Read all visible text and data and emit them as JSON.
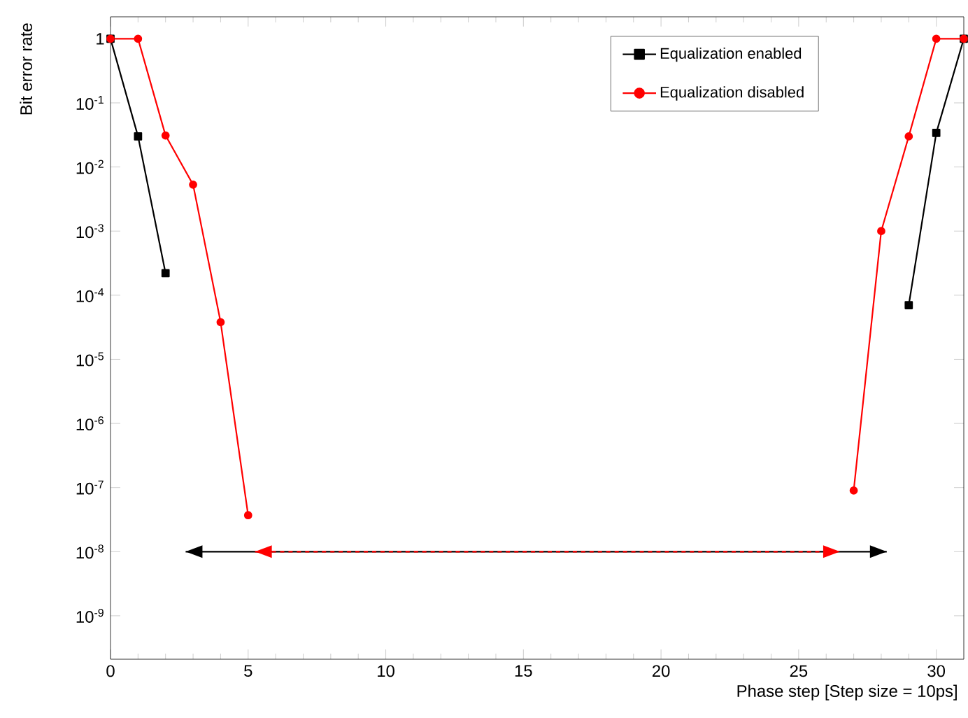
{
  "chart_data": {
    "type": "line",
    "xlabel": "Phase step [Step size = 10ps]",
    "ylabel": "Bit error rate",
    "log": "y",
    "legend": "top right",
    "grid": false,
    "xlim": [
      0,
      31
    ],
    "xticks": [
      0,
      5,
      10,
      15,
      20,
      25,
      30
    ],
    "ylim": [
      2.1e-10,
      2.2
    ],
    "yticks": [
      {
        "value": 1,
        "label": "1"
      },
      {
        "value": 0.1,
        "label": "10$^{-1}$"
      },
      {
        "value": 0.01,
        "label": "10$^{-2}$"
      },
      {
        "value": 0.001,
        "label": "10$^{-3}$"
      },
      {
        "value": 0.0001,
        "label": "10$^{-4}$"
      },
      {
        "value": 1e-05,
        "label": "10$^{-5}$"
      },
      {
        "value": 1e-06,
        "label": "10$^{-6}$"
      },
      {
        "value": 1e-07,
        "label": "10$^{-7}$"
      },
      {
        "value": 1e-08,
        "label": "10$^{-8}$"
      },
      {
        "value": 1e-09,
        "label": "10$^{-9}$"
      }
    ],
    "x": [
      0,
      1,
      2,
      3,
      4,
      5,
      6,
      7,
      8,
      9,
      10,
      11,
      12,
      13,
      14,
      15,
      16,
      17,
      18,
      19,
      20,
      21,
      22,
      23,
      24,
      25,
      26,
      27,
      28,
      29,
      30,
      31
    ],
    "series": [
      {
        "name": "Equalization enabled",
        "color": "#000000",
        "marker": "square",
        "values": [
          1,
          0.03,
          0.00022,
          null,
          null,
          null,
          null,
          null,
          null,
          null,
          null,
          null,
          null,
          null,
          null,
          null,
          null,
          null,
          null,
          null,
          null,
          null,
          null,
          null,
          null,
          null,
          null,
          null,
          null,
          7e-05,
          0.034,
          1
        ]
      },
      {
        "name": "Equalization disabled",
        "color": "#ff0000",
        "marker": "circle",
        "values": [
          1,
          1,
          0.031,
          0.0053,
          3.8e-05,
          3.7e-08,
          null,
          null,
          null,
          null,
          null,
          null,
          null,
          null,
          null,
          null,
          null,
          null,
          null,
          null,
          null,
          null,
          null,
          null,
          null,
          null,
          null,
          9e-08,
          0.001,
          0.03,
          1,
          1
        ]
      },
      {
        "color": "#000000",
        "marker": "none",
        "line_style": "solid",
        "x": [
          2.73,
          28.2
        ],
        "values": [
          1e-08,
          1e-08
        ]
      },
      {
        "color": "#ff0000",
        "marker": "none",
        "line_style": "dashed",
        "x": [
          5.25,
          26.5
        ],
        "values": [
          1e-08,
          1e-08
        ]
      }
    ]
  }
}
